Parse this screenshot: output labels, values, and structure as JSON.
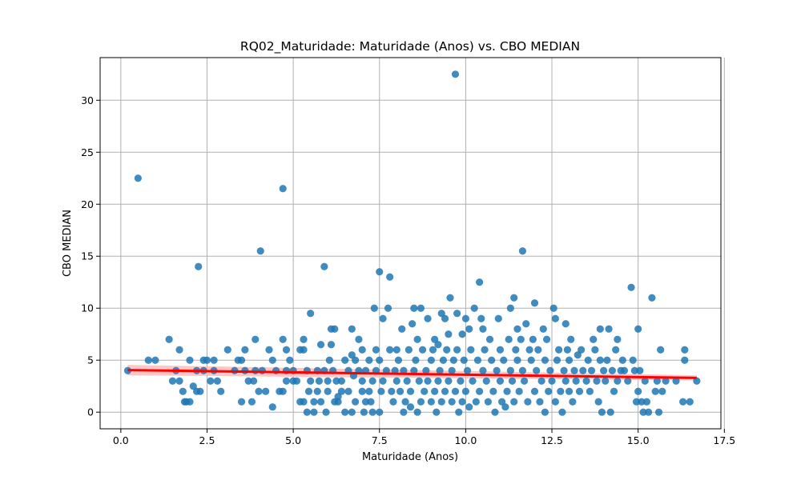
{
  "chart_data": {
    "type": "scatter",
    "title": "RQ02_Maturidade: Maturidade (Anos) vs. CBO MEDIAN",
    "xlabel": "Maturidade (Anos)",
    "ylabel": "CBO MEDIAN",
    "xlim": [
      -0.6,
      17.4
    ],
    "ylim": [
      -1.6,
      34.1
    ],
    "xticks": [
      0.0,
      2.5,
      5.0,
      7.5,
      10.0,
      12.5,
      15.0,
      17.5
    ],
    "xtick_labels": [
      "0.0",
      "2.5",
      "5.0",
      "7.5",
      "10.0",
      "12.5",
      "15.0",
      "17.5"
    ],
    "yticks": [
      0,
      5,
      10,
      15,
      20,
      25,
      30
    ],
    "ytick_labels": [
      "0",
      "5",
      "10",
      "15",
      "20",
      "25",
      "30"
    ],
    "grid": true,
    "colors": {
      "points": "#1f77b4",
      "regression": "#ff0000",
      "confidence_band": "#ffb3b3"
    },
    "regression": {
      "x": [
        0.2,
        16.7
      ],
      "y": [
        4.05,
        3.3
      ],
      "ci_upper": [
        4.55,
        3.55
      ],
      "ci_lower": [
        3.55,
        3.05
      ]
    },
    "points": [
      [
        0.2,
        4
      ],
      [
        0.5,
        22.5
      ],
      [
        0.8,
        5
      ],
      [
        1.0,
        5
      ],
      [
        1.4,
        7
      ],
      [
        1.5,
        3
      ],
      [
        1.6,
        4
      ],
      [
        1.7,
        6
      ],
      [
        1.7,
        3
      ],
      [
        1.8,
        2
      ],
      [
        1.85,
        1
      ],
      [
        1.9,
        1
      ],
      [
        2.0,
        5
      ],
      [
        2.0,
        1
      ],
      [
        2.1,
        2.5
      ],
      [
        2.2,
        2
      ],
      [
        2.2,
        4
      ],
      [
        2.25,
        14
      ],
      [
        2.3,
        2
      ],
      [
        2.4,
        5
      ],
      [
        2.4,
        4
      ],
      [
        2.5,
        5
      ],
      [
        2.6,
        3
      ],
      [
        2.7,
        5
      ],
      [
        2.7,
        4
      ],
      [
        2.8,
        3
      ],
      [
        2.9,
        2
      ],
      [
        3.1,
        6
      ],
      [
        3.3,
        4
      ],
      [
        3.4,
        5
      ],
      [
        3.5,
        1
      ],
      [
        3.5,
        5
      ],
      [
        3.6,
        6
      ],
      [
        3.6,
        4
      ],
      [
        3.7,
        3
      ],
      [
        3.8,
        1
      ],
      [
        3.85,
        3
      ],
      [
        3.9,
        7
      ],
      [
        3.9,
        4
      ],
      [
        4.0,
        2
      ],
      [
        4.05,
        15.5
      ],
      [
        4.1,
        4
      ],
      [
        4.2,
        2
      ],
      [
        4.3,
        6
      ],
      [
        4.4,
        0.5
      ],
      [
        4.4,
        5
      ],
      [
        4.5,
        4
      ],
      [
        4.6,
        2
      ],
      [
        4.7,
        7
      ],
      [
        4.7,
        2
      ],
      [
        4.7,
        21.5
      ],
      [
        4.8,
        6
      ],
      [
        4.8,
        4
      ],
      [
        4.8,
        3
      ],
      [
        4.9,
        5
      ],
      [
        5.0,
        4
      ],
      [
        5.0,
        3
      ],
      [
        5.1,
        3
      ],
      [
        5.2,
        1
      ],
      [
        5.2,
        6
      ],
      [
        5.3,
        7
      ],
      [
        5.3,
        6
      ],
      [
        5.3,
        1
      ],
      [
        5.4,
        0
      ],
      [
        5.4,
        4
      ],
      [
        5.45,
        2
      ],
      [
        5.5,
        9.5
      ],
      [
        5.5,
        3
      ],
      [
        5.6,
        1
      ],
      [
        5.6,
        0
      ],
      [
        5.7,
        4
      ],
      [
        5.7,
        2
      ],
      [
        5.75,
        3
      ],
      [
        5.8,
        6.5
      ],
      [
        5.8,
        1
      ],
      [
        5.9,
        14
      ],
      [
        5.9,
        4
      ],
      [
        5.95,
        0
      ],
      [
        6.0,
        2
      ],
      [
        6.0,
        3
      ],
      [
        6.05,
        5
      ],
      [
        6.1,
        6.5
      ],
      [
        6.1,
        8
      ],
      [
        6.15,
        4
      ],
      [
        6.2,
        1
      ],
      [
        6.2,
        8
      ],
      [
        6.25,
        3
      ],
      [
        6.3,
        1.5
      ],
      [
        6.3,
        1
      ],
      [
        6.4,
        3
      ],
      [
        6.4,
        2
      ],
      [
        6.5,
        0
      ],
      [
        6.5,
        5
      ],
      [
        6.6,
        4
      ],
      [
        6.6,
        2
      ],
      [
        6.7,
        0
      ],
      [
        6.7,
        8
      ],
      [
        6.7,
        5.5
      ],
      [
        6.75,
        3.5
      ],
      [
        6.8,
        5
      ],
      [
        6.8,
        1
      ],
      [
        6.9,
        7
      ],
      [
        6.9,
        4
      ],
      [
        7.0,
        2
      ],
      [
        7.0,
        3
      ],
      [
        7.0,
        6
      ],
      [
        7.05,
        0
      ],
      [
        7.1,
        4
      ],
      [
        7.1,
        1
      ],
      [
        7.2,
        5
      ],
      [
        7.2,
        2
      ],
      [
        7.25,
        1
      ],
      [
        7.3,
        3
      ],
      [
        7.3,
        0
      ],
      [
        7.35,
        10
      ],
      [
        7.4,
        6
      ],
      [
        7.4,
        4
      ],
      [
        7.5,
        13.5
      ],
      [
        7.5,
        5
      ],
      [
        7.5,
        0
      ],
      [
        7.55,
        2
      ],
      [
        7.6,
        9
      ],
      [
        7.6,
        3
      ],
      [
        7.7,
        4
      ],
      [
        7.75,
        10
      ],
      [
        7.8,
        13
      ],
      [
        7.8,
        6
      ],
      [
        7.85,
        2
      ],
      [
        7.9,
        1
      ],
      [
        7.95,
        4
      ],
      [
        8.0,
        3
      ],
      [
        8.0,
        6
      ],
      [
        8.05,
        5
      ],
      [
        8.1,
        2
      ],
      [
        8.15,
        8
      ],
      [
        8.2,
        0
      ],
      [
        8.2,
        4
      ],
      [
        8.25,
        1
      ],
      [
        8.3,
        3
      ],
      [
        8.35,
        6
      ],
      [
        8.4,
        0.5
      ],
      [
        8.4,
        2
      ],
      [
        8.45,
        8.5
      ],
      [
        8.5,
        10
      ],
      [
        8.5,
        4
      ],
      [
        8.55,
        5
      ],
      [
        8.6,
        0
      ],
      [
        8.6,
        7
      ],
      [
        8.65,
        3
      ],
      [
        8.7,
        10
      ],
      [
        8.7,
        1
      ],
      [
        8.75,
        6
      ],
      [
        8.8,
        2
      ],
      [
        8.85,
        4
      ],
      [
        8.9,
        3
      ],
      [
        8.9,
        9
      ],
      [
        9.0,
        1
      ],
      [
        9.0,
        5
      ],
      [
        9.05,
        6
      ],
      [
        9.1,
        7
      ],
      [
        9.1,
        2
      ],
      [
        9.15,
        0
      ],
      [
        9.2,
        3
      ],
      [
        9.2,
        6.5
      ],
      [
        9.25,
        4
      ],
      [
        9.3,
        9.5
      ],
      [
        9.3,
        1
      ],
      [
        9.35,
        5
      ],
      [
        9.4,
        2
      ],
      [
        9.4,
        9
      ],
      [
        9.45,
        6
      ],
      [
        9.5,
        7.5
      ],
      [
        9.5,
        3
      ],
      [
        9.55,
        11
      ],
      [
        9.6,
        1
      ],
      [
        9.6,
        4
      ],
      [
        9.65,
        5
      ],
      [
        9.7,
        32.5
      ],
      [
        9.7,
        2
      ],
      [
        9.75,
        9.5
      ],
      [
        9.75,
        6
      ],
      [
        9.8,
        0
      ],
      [
        9.85,
        3
      ],
      [
        9.9,
        7.5
      ],
      [
        9.9,
        1
      ],
      [
        9.95,
        5
      ],
      [
        10.0,
        9
      ],
      [
        10.0,
        2
      ],
      [
        10.05,
        4
      ],
      [
        10.1,
        8
      ],
      [
        10.1,
        0.5
      ],
      [
        10.15,
        6
      ],
      [
        10.2,
        3
      ],
      [
        10.25,
        10
      ],
      [
        10.3,
        1
      ],
      [
        10.35,
        5
      ],
      [
        10.4,
        12.5
      ],
      [
        10.4,
        2
      ],
      [
        10.45,
        9
      ],
      [
        10.5,
        4
      ],
      [
        10.5,
        8
      ],
      [
        10.55,
        6
      ],
      [
        10.6,
        3
      ],
      [
        10.65,
        1
      ],
      [
        10.7,
        7
      ],
      [
        10.75,
        5
      ],
      [
        10.8,
        2
      ],
      [
        10.85,
        0
      ],
      [
        10.9,
        4
      ],
      [
        10.95,
        9
      ],
      [
        11.0,
        3
      ],
      [
        11.0,
        6
      ],
      [
        11.05,
        1
      ],
      [
        11.1,
        5
      ],
      [
        11.15,
        0.5
      ],
      [
        11.2,
        2
      ],
      [
        11.25,
        7
      ],
      [
        11.3,
        4
      ],
      [
        11.3,
        10
      ],
      [
        11.35,
        3
      ],
      [
        11.4,
        11
      ],
      [
        11.4,
        1
      ],
      [
        11.45,
        6
      ],
      [
        11.5,
        5
      ],
      [
        11.5,
        8
      ],
      [
        11.55,
        2
      ],
      [
        11.6,
        7
      ],
      [
        11.65,
        15.5
      ],
      [
        11.65,
        4
      ],
      [
        11.7,
        3
      ],
      [
        11.75,
        8.5
      ],
      [
        11.8,
        1
      ],
      [
        11.85,
        6
      ],
      [
        11.9,
        5
      ],
      [
        11.95,
        7
      ],
      [
        12.0,
        10.5
      ],
      [
        12.0,
        2
      ],
      [
        12.05,
        4
      ],
      [
        12.1,
        6
      ],
      [
        12.15,
        1
      ],
      [
        12.2,
        3
      ],
      [
        12.25,
        8
      ],
      [
        12.3,
        5
      ],
      [
        12.3,
        0
      ],
      [
        12.35,
        7
      ],
      [
        12.4,
        2
      ],
      [
        12.45,
        4
      ],
      [
        12.5,
        3
      ],
      [
        12.55,
        10
      ],
      [
        12.6,
        9
      ],
      [
        12.6,
        1
      ],
      [
        12.65,
        5
      ],
      [
        12.7,
        6
      ],
      [
        12.75,
        2
      ],
      [
        12.8,
        0
      ],
      [
        12.85,
        4
      ],
      [
        12.9,
        8.5
      ],
      [
        12.9,
        3
      ],
      [
        12.95,
        6
      ],
      [
        13.0,
        2
      ],
      [
        13.0,
        5
      ],
      [
        13.05,
        7
      ],
      [
        13.1,
        1
      ],
      [
        13.15,
        4
      ],
      [
        13.2,
        3
      ],
      [
        13.25,
        5.5
      ],
      [
        13.3,
        2
      ],
      [
        13.35,
        6
      ],
      [
        13.4,
        4
      ],
      [
        13.5,
        3
      ],
      [
        13.55,
        5
      ],
      [
        13.6,
        2
      ],
      [
        13.65,
        4
      ],
      [
        13.7,
        7
      ],
      [
        13.75,
        6
      ],
      [
        13.8,
        3
      ],
      [
        13.85,
        1
      ],
      [
        13.9,
        5
      ],
      [
        13.9,
        8
      ],
      [
        13.95,
        0
      ],
      [
        14.0,
        4
      ],
      [
        14.05,
        3
      ],
      [
        14.1,
        5
      ],
      [
        14.15,
        8
      ],
      [
        14.2,
        0
      ],
      [
        14.25,
        4
      ],
      [
        14.3,
        2
      ],
      [
        14.35,
        6
      ],
      [
        14.4,
        3
      ],
      [
        14.4,
        7
      ],
      [
        14.5,
        4
      ],
      [
        14.55,
        5
      ],
      [
        14.6,
        4
      ],
      [
        14.7,
        3
      ],
      [
        14.8,
        12
      ],
      [
        14.85,
        5
      ],
      [
        14.9,
        4
      ],
      [
        14.95,
        1
      ],
      [
        15.0,
        8
      ],
      [
        15.0,
        2
      ],
      [
        15.05,
        4
      ],
      [
        15.1,
        1
      ],
      [
        15.15,
        0
      ],
      [
        15.2,
        3
      ],
      [
        15.25,
        1
      ],
      [
        15.3,
        0
      ],
      [
        15.4,
        11
      ],
      [
        15.5,
        2
      ],
      [
        15.55,
        3
      ],
      [
        15.6,
        0
      ],
      [
        15.65,
        6
      ],
      [
        15.7,
        2
      ],
      [
        15.8,
        3
      ],
      [
        16.1,
        3
      ],
      [
        16.3,
        1
      ],
      [
        16.35,
        6
      ],
      [
        16.35,
        5
      ],
      [
        16.5,
        1
      ],
      [
        16.7,
        3
      ]
    ]
  }
}
